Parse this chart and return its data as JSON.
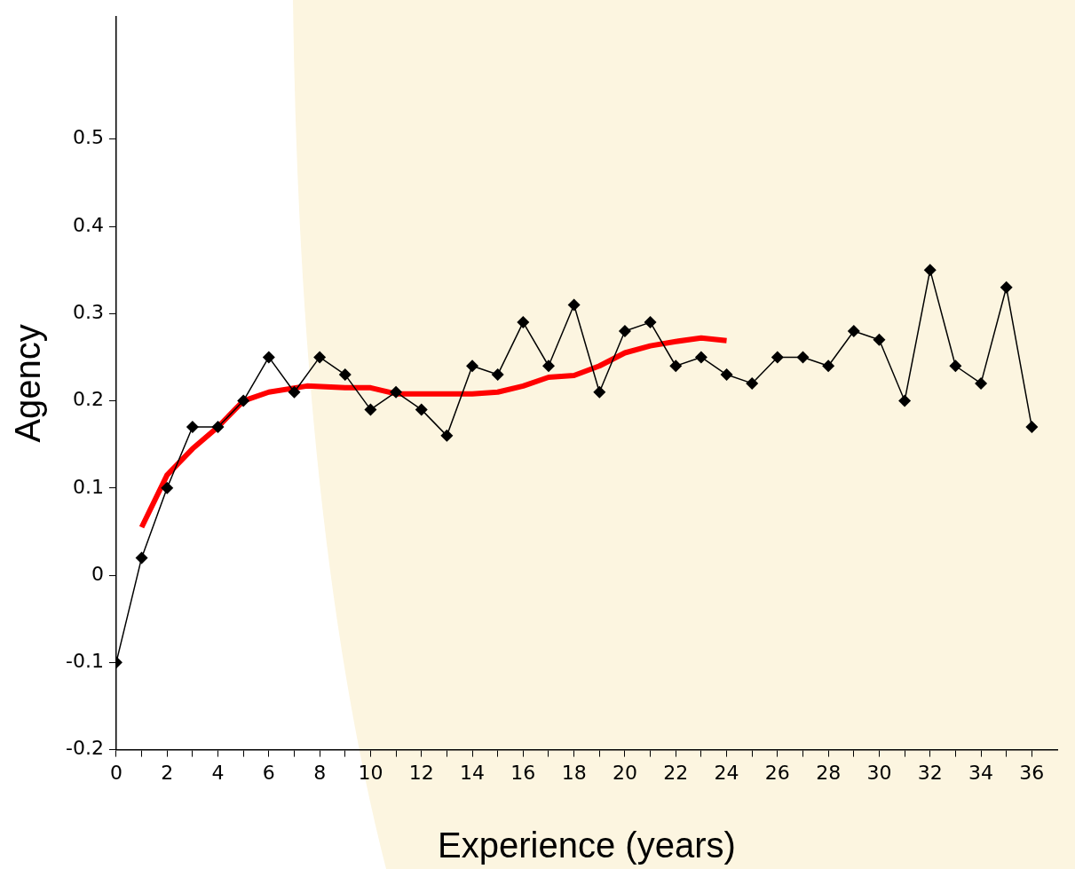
{
  "chart_data": {
    "type": "line",
    "xlabel": "Experience (years)",
    "ylabel": "Agency",
    "xlim": [
      0,
      37
    ],
    "xticks": [
      0,
      {
        "value": 1,
        "label": null
      },
      2,
      {
        "value": 3,
        "label": null
      },
      4,
      {
        "value": 5,
        "label": null
      },
      6,
      {
        "value": 7,
        "label": null
      },
      8,
      {
        "value": 9,
        "label": null
      },
      10,
      {
        "value": 11,
        "label": null
      },
      12,
      {
        "value": 13,
        "label": null
      },
      14,
      {
        "value": 15,
        "label": null
      },
      16,
      {
        "value": 17,
        "label": null
      },
      18,
      {
        "value": 19,
        "label": null
      },
      20,
      {
        "value": 21,
        "label": null
      },
      22,
      {
        "value": 23,
        "label": null
      },
      24,
      {
        "value": 25,
        "label": null
      },
      26,
      {
        "value": 27,
        "label": null
      },
      28,
      {
        "value": 29,
        "label": null
      },
      30,
      {
        "value": 31,
        "label": null
      },
      32,
      {
        "value": 33,
        "label": null
      },
      34,
      {
        "value": 35,
        "label": null
      },
      36
    ],
    "ylim": [
      -0.2,
      0.64
    ],
    "yticks": [
      -0.2,
      -0.1,
      0,
      0.1,
      0.2,
      0.3,
      0.4,
      0.5
    ],
    "grid": false,
    "legend": false,
    "line_style": "solid",
    "series": [
      {
        "color": "#000000",
        "marker": "diamond",
        "x": [
          0,
          1,
          2,
          3,
          4,
          5,
          6,
          7,
          8,
          9,
          10,
          11,
          12,
          13,
          14,
          15,
          16,
          17,
          18,
          19,
          20,
          21,
          22,
          23,
          24,
          25,
          26,
          27,
          28,
          29,
          30,
          31,
          32,
          33,
          34,
          35,
          36
        ],
        "values": [
          -0.1,
          0.02,
          0.1,
          0.17,
          0.17,
          0.2,
          0.25,
          0.21,
          0.25,
          0.23,
          0.19,
          0.21,
          0.19,
          0.16,
          0.24,
          0.23,
          0.29,
          0.24,
          0.31,
          0.21,
          0.28,
          0.29,
          0.24,
          0.25,
          0.23,
          0.22,
          0.25,
          0.25,
          0.24,
          0.28,
          0.27,
          0.2,
          0.35,
          0.24,
          0.22,
          0.33,
          0.17
        ]
      },
      {
        "color": "#ff0000",
        "marker": "none",
        "x": [
          1,
          2,
          3,
          4,
          5,
          6,
          7.5,
          9,
          10,
          11,
          13,
          14,
          15,
          16,
          17,
          18,
          19,
          20,
          21,
          22,
          23,
          24
        ],
        "values": [
          0.055,
          0.115,
          0.145,
          0.17,
          0.2,
          0.21,
          0.217,
          0.215,
          0.215,
          0.208,
          0.208,
          0.208,
          0.21,
          0.217,
          0.227,
          0.229,
          0.24,
          0.255,
          0.263,
          0.268,
          0.272,
          0.269
        ]
      }
    ]
  }
}
